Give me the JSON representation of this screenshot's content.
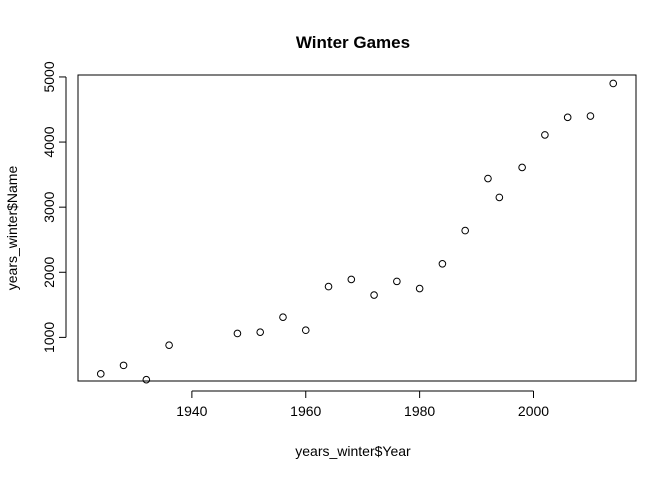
{
  "chart_data": {
    "type": "scatter",
    "title": "Winter Games",
    "xlabel": "years_winter$Year",
    "ylabel": "years_winter$Name",
    "xlim": [
      1920,
      2018
    ],
    "ylim": [
      330,
      5030
    ],
    "xticks": [
      1940,
      1960,
      1980,
      2000
    ],
    "yticks": [
      1000,
      2000,
      3000,
      4000,
      5000
    ],
    "points": [
      {
        "x": 1924,
        "y": 440
      },
      {
        "x": 1928,
        "y": 570
      },
      {
        "x": 1932,
        "y": 350
      },
      {
        "x": 1936,
        "y": 880
      },
      {
        "x": 1948,
        "y": 1060
      },
      {
        "x": 1952,
        "y": 1080
      },
      {
        "x": 1956,
        "y": 1310
      },
      {
        "x": 1960,
        "y": 1110
      },
      {
        "x": 1964,
        "y": 1780
      },
      {
        "x": 1968,
        "y": 1890
      },
      {
        "x": 1972,
        "y": 1650
      },
      {
        "x": 1976,
        "y": 1860
      },
      {
        "x": 1980,
        "y": 1750
      },
      {
        "x": 1984,
        "y": 2130
      },
      {
        "x": 1988,
        "y": 2640
      },
      {
        "x": 1992,
        "y": 3440
      },
      {
        "x": 1994,
        "y": 3150
      },
      {
        "x": 1998,
        "y": 3610
      },
      {
        "x": 2002,
        "y": 4110
      },
      {
        "x": 2006,
        "y": 4380
      },
      {
        "x": 2010,
        "y": 4400
      },
      {
        "x": 2014,
        "y": 4900
      }
    ]
  }
}
